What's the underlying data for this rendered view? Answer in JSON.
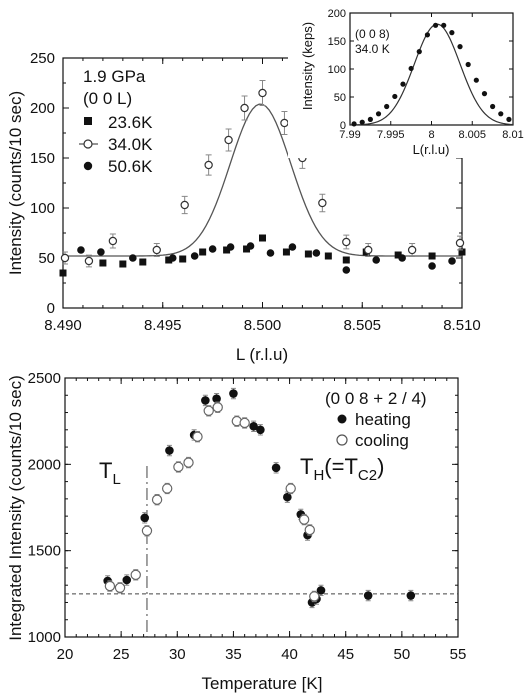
{
  "chart_data": [
    {
      "type": "scatter",
      "panel": "top",
      "xlabel": "L (r.l.u)",
      "ylabel": "Intensity (counts/10 sec)",
      "xlim": [
        8.49,
        8.51
      ],
      "ylim": [
        0,
        250
      ],
      "xticks": [
        "8.490",
        "8.495",
        "8.500",
        "8.505",
        "8.510"
      ],
      "xtick_values": [
        8.49,
        8.495,
        8.5,
        8.505,
        8.51
      ],
      "yticks": [
        "0",
        "50",
        "100",
        "150",
        "200",
        "250"
      ],
      "ytick_values": [
        0,
        50,
        100,
        150,
        200,
        250
      ],
      "annotations": [
        "1.9 GPa",
        "(0 0 L)"
      ],
      "series": [
        {
          "name": "23.6K",
          "marker": "square",
          "x": [
            8.49,
            8.492,
            8.493,
            8.494,
            8.4953,
            8.496,
            8.497,
            8.4982,
            8.4992,
            8.5,
            8.5012,
            8.5023,
            8.5033,
            8.5042,
            8.5052,
            8.5068,
            8.5085,
            8.51
          ],
          "y": [
            35,
            45,
            44,
            46,
            48,
            49,
            56,
            58,
            59,
            70,
            56,
            54,
            52,
            48,
            56,
            53,
            52,
            56
          ]
        },
        {
          "name": "34.0K",
          "marker": "open-circle",
          "x": [
            8.4901,
            8.4913,
            8.4925,
            8.4947,
            8.4961,
            8.4973,
            8.4983,
            8.4991,
            8.5,
            8.5011,
            8.502,
            8.503,
            8.5042,
            8.5053,
            8.5075,
            8.5099
          ],
          "y": [
            50,
            47,
            67,
            58,
            103,
            143,
            168,
            200,
            215,
            185,
            150,
            105,
            66,
            58,
            58,
            65
          ]
        },
        {
          "name": "50.6K",
          "marker": "filled-circle",
          "x": [
            8.4909,
            8.4919,
            8.4935,
            8.4955,
            8.4966,
            8.4975,
            8.4984,
            8.4994,
            8.5004,
            8.5015,
            8.5027,
            8.5042,
            8.5057,
            8.507,
            8.5085,
            8.5095
          ],
          "y": [
            58,
            56,
            50,
            50,
            52,
            59,
            61,
            62,
            55,
            61,
            55,
            38,
            48,
            50,
            42,
            47
          ]
        }
      ],
      "fit_line": {
        "series": "34.0K",
        "form": "gaussian",
        "center": 8.4999,
        "amplitude": 152,
        "sigma": 0.00152,
        "background": 52
      }
    },
    {
      "type": "scatter",
      "panel": "inset",
      "xlabel": "L(r.l.u)",
      "ylabel": "Intensity (keps)",
      "xlim": [
        7.99,
        8.01
      ],
      "ylim": [
        0,
        200
      ],
      "xticks": [
        "7.99",
        "7.995",
        "8",
        "8.005",
        "8.01"
      ],
      "xtick_values": [
        7.99,
        7.995,
        8,
        8.005,
        8.01
      ],
      "yticks": [
        "0",
        "50",
        "100",
        "150",
        "200"
      ],
      "ytick_values": [
        0,
        50,
        100,
        150,
        200
      ],
      "annotations": [
        "(0 0 8)",
        "34.0 K"
      ],
      "series": [
        {
          "name": "",
          "marker": "filled-circle",
          "x": [
            7.9905,
            7.9915,
            7.9925,
            7.9935,
            7.9945,
            7.9955,
            7.9965,
            7.9975,
            7.9985,
            7.9995,
            8.0005,
            8.0015,
            8.0025,
            8.0035,
            8.0045,
            8.0055,
            8.0065,
            8.0075,
            8.0085,
            8.0095
          ],
          "y": [
            2,
            5,
            10,
            20,
            33,
            51,
            73,
            101,
            131,
            161,
            178,
            178,
            165,
            140,
            108,
            80,
            56,
            33,
            20,
            10
          ]
        }
      ],
      "fit_line": {
        "form": "gaussian",
        "center": 8.0007,
        "amplitude": 180,
        "sigma": 0.0028,
        "background": 0
      }
    },
    {
      "type": "scatter",
      "panel": "bottom",
      "xlabel": "Temperature [K]",
      "ylabel": "Integrated Intensity (counts/10 sec)",
      "xlim": [
        20,
        55
      ],
      "ylim": [
        1000,
        2500
      ],
      "xticks": [
        "20",
        "25",
        "30",
        "35",
        "40",
        "45",
        "50",
        "55"
      ],
      "xtick_values": [
        20,
        25,
        30,
        35,
        40,
        45,
        50,
        55
      ],
      "yticks": [
        "1000",
        "1500",
        "2000",
        "2500"
      ],
      "ytick_values": [
        1000,
        1500,
        2000,
        2500
      ],
      "annotations": [
        "(0 0 8 + 2 / 4)",
        "T_L",
        "T_H(=T_C2)"
      ],
      "T_L_label": {
        "main": "T",
        "sub": "L"
      },
      "T_H_label": {
        "main": "T",
        "sub1": "H",
        "mid": "(=T",
        "sub2": "C2",
        "end": ")"
      },
      "T_L": 27.3,
      "baseline": 1250,
      "series": [
        {
          "name": "heating",
          "marker": "filled-circle",
          "x": [
            23.8,
            25.5,
            27.1,
            29.3,
            31.5,
            32.5,
            33.5,
            35.0,
            36.8,
            37.4,
            38.8,
            39.8,
            41.0,
            41.6,
            42.0,
            42.4,
            42.8,
            47.0,
            50.8
          ],
          "y": [
            1325,
            1330,
            1690,
            2080,
            2170,
            2370,
            2380,
            2410,
            2220,
            2200,
            1980,
            1810,
            1710,
            1590,
            1200,
            1220,
            1270,
            1240,
            1240
          ]
        },
        {
          "name": "cooling",
          "marker": "open-circle",
          "x": [
            24.0,
            24.9,
            26.3,
            27.3,
            28.2,
            29.1,
            30.1,
            31.0,
            31.8,
            32.8,
            33.6,
            35.3,
            36.0,
            40.1,
            41.3,
            41.8,
            42.2
          ],
          "y": [
            1295,
            1285,
            1360,
            1615,
            1795,
            1860,
            1985,
            2010,
            2160,
            2310,
            2330,
            2250,
            2240,
            1860,
            1680,
            1620,
            1235
          ]
        }
      ]
    }
  ]
}
